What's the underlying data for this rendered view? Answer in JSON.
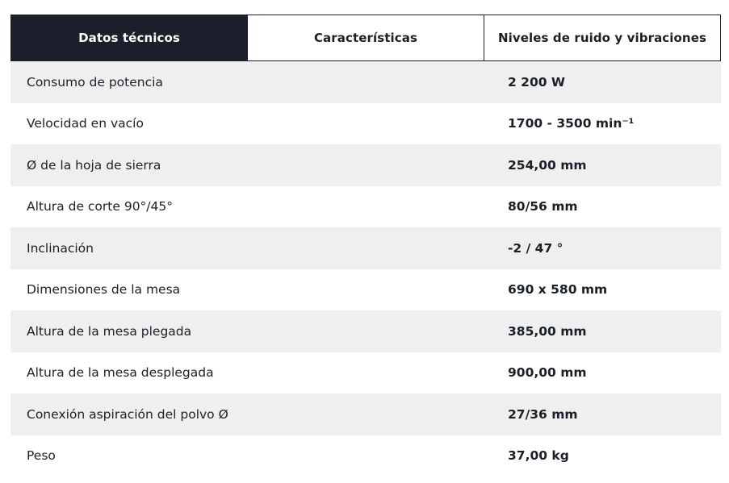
{
  "tabs": [
    {
      "label": "Datos técnicos",
      "active": true
    },
    {
      "label": "Características",
      "active": false
    },
    {
      "label": "Niveles de ruido y vibraciones",
      "active": false
    }
  ],
  "specs": [
    {
      "label": "Consumo de potencia",
      "value": "2 200 W"
    },
    {
      "label": "Velocidad en vacío",
      "value": "1700 - 3500 min⁻¹"
    },
    {
      "label": "Ø de la hoja de sierra",
      "value": "254,00 mm"
    },
    {
      "label": "Altura de corte 90°/45°",
      "value": "80/56 mm"
    },
    {
      "label": "Inclinación",
      "value": "-2 / 47 °"
    },
    {
      "label": "Dimensiones de la mesa",
      "value": "690 x 580 mm"
    },
    {
      "label": "Altura de la mesa plegada",
      "value": "385,00 mm"
    },
    {
      "label": "Altura de la mesa desplegada",
      "value": "900,00 mm"
    },
    {
      "label": "Conexión aspiración del polvo Ø",
      "value": "27/36 mm"
    },
    {
      "label": "Peso",
      "value": "37,00 kg"
    }
  ],
  "colors": {
    "active_tab_bg": "#1b1f2b",
    "row_alt_bg": "#efefef",
    "text": "#1b1f27"
  }
}
